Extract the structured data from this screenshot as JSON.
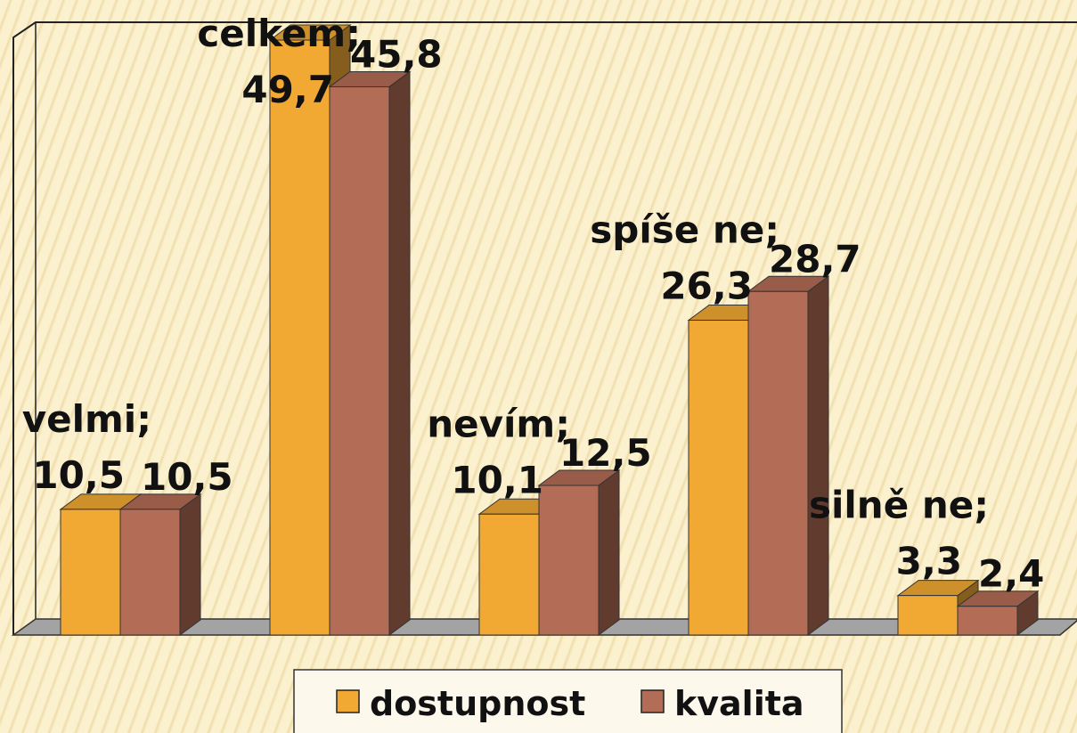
{
  "chart_data": {
    "type": "bar3d",
    "categories": [
      "velmi;",
      "celkem;",
      "nevím;",
      "spíše ne;",
      "silně ne;"
    ],
    "series": [
      {
        "name": "dostupnost",
        "color": "#f2a933",
        "values": [
          10.5,
          49.7,
          10.1,
          26.3,
          3.3
        ],
        "value_labels": [
          "10,5",
          "49,7",
          "10,1",
          "26,3",
          "3,3"
        ]
      },
      {
        "name": "kvalita",
        "color": "#b36c56",
        "values": [
          10.5,
          45.8,
          12.5,
          28.7,
          2.4
        ],
        "value_labels": [
          "10,5",
          "45,8",
          "12,5",
          "28,7",
          "2,4"
        ]
      }
    ],
    "legend": "bottom"
  }
}
